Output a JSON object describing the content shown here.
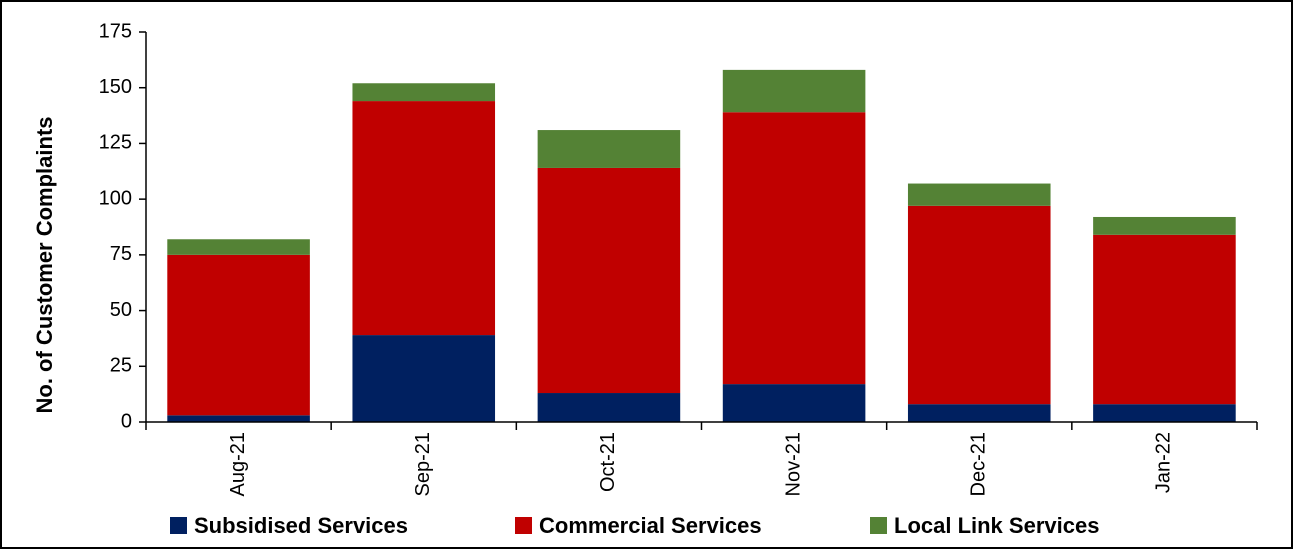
{
  "chart_data": {
    "type": "stacked_bar",
    "y_label": "No. of Customer Complaints",
    "categories": [
      "Aug-21",
      "Sep-21",
      "Oct-21",
      "Nov-21",
      "Dec-21",
      "Jan-22"
    ],
    "series": [
      {
        "name": "Subsidised Services",
        "color": "#002060",
        "values": [
          3,
          39,
          13,
          17,
          8,
          8
        ]
      },
      {
        "name": "Commercial Services",
        "color": "#c00000",
        "values": [
          72,
          105,
          101,
          122,
          89,
          76
        ]
      },
      {
        "name": "Local Link Services",
        "color": "#548235",
        "values": [
          7,
          8,
          17,
          19,
          10,
          8
        ]
      }
    ],
    "ylim": [
      0,
      175
    ],
    "yticks": [
      0,
      25,
      50,
      75,
      100,
      125,
      150,
      175
    ],
    "grid": false,
    "legend": "bottom"
  }
}
